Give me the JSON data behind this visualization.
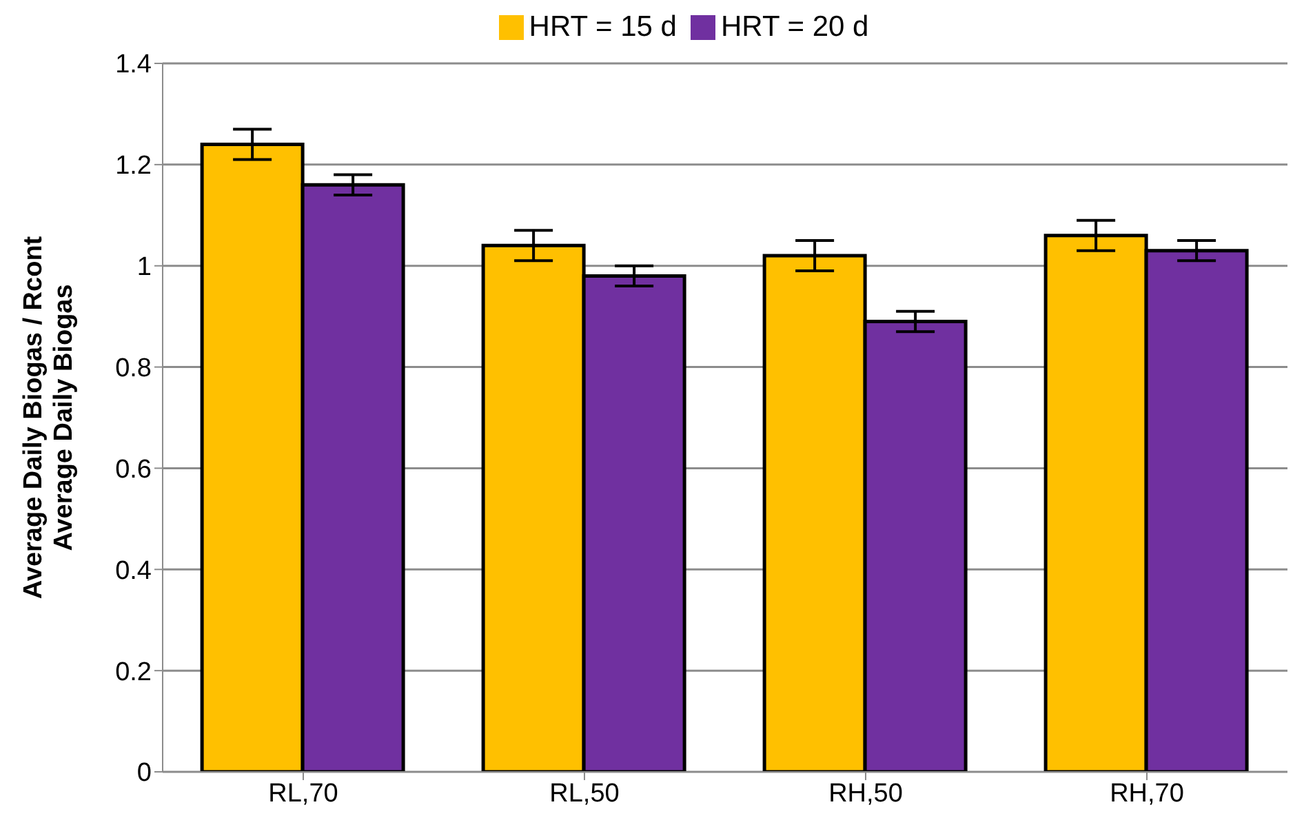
{
  "chart_data": {
    "type": "bar",
    "ylabel": "Average Daily Biogas / Rcont Average Daily Biogas",
    "categories": [
      "RL,70",
      "RL,50",
      "RH,50",
      "RH,70"
    ],
    "series": [
      {
        "name": "HRT = 15 d",
        "color": "#ffc000",
        "values": [
          1.24,
          1.04,
          1.02,
          1.06
        ],
        "errors": [
          0.03,
          0.03,
          0.03,
          0.03
        ]
      },
      {
        "name": "HRT = 20 d",
        "color": "#7030a0",
        "values": [
          1.16,
          0.98,
          0.89,
          1.03
        ],
        "errors": [
          0.02,
          0.02,
          0.02,
          0.02
        ]
      }
    ],
    "ylim": [
      0,
      1.4
    ],
    "yticks": [
      0,
      0.2,
      0.4,
      0.6,
      0.8,
      1,
      1.2,
      1.4
    ],
    "grid": "y",
    "legend": "top"
  }
}
